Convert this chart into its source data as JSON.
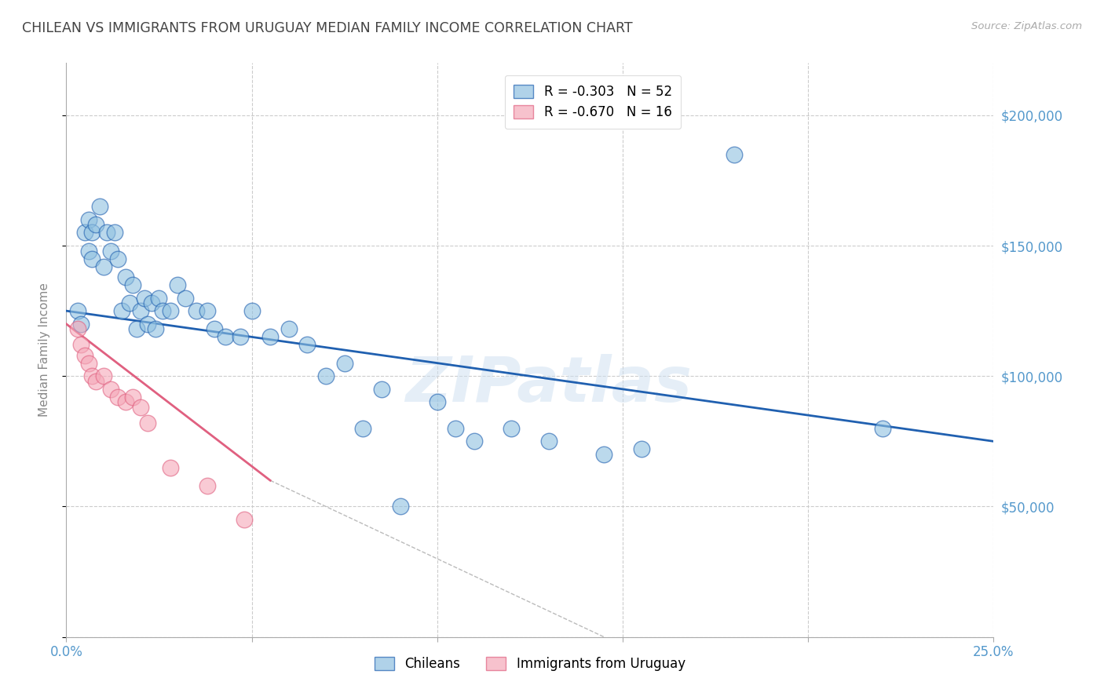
{
  "title": "CHILEAN VS IMMIGRANTS FROM URUGUAY MEDIAN FAMILY INCOME CORRELATION CHART",
  "source": "Source: ZipAtlas.com",
  "ylabel": "Median Family Income",
  "xlim": [
    0.0,
    0.25
  ],
  "ylim": [
    0,
    220000
  ],
  "yticks": [
    0,
    50000,
    100000,
    150000,
    200000
  ],
  "xticks": [
    0.0,
    0.05,
    0.1,
    0.15,
    0.2,
    0.25
  ],
  "xtick_labels": [
    "0.0%",
    "",
    "",
    "",
    "",
    "25.0%"
  ],
  "ytick_labels": [
    "",
    "$50,000",
    "$100,000",
    "$150,000",
    "$200,000"
  ],
  "legend_entries": [
    {
      "label": "R = -0.303   N = 52"
    },
    {
      "label": "R = -0.670   N = 16"
    }
  ],
  "legend_labels_bottom": [
    "Chileans",
    "Immigrants from Uruguay"
  ],
  "chileans_x": [
    0.003,
    0.004,
    0.005,
    0.006,
    0.006,
    0.007,
    0.007,
    0.008,
    0.009,
    0.01,
    0.011,
    0.012,
    0.013,
    0.014,
    0.015,
    0.016,
    0.017,
    0.018,
    0.019,
    0.02,
    0.021,
    0.022,
    0.023,
    0.024,
    0.025,
    0.026,
    0.028,
    0.03,
    0.032,
    0.035,
    0.038,
    0.04,
    0.043,
    0.047,
    0.05,
    0.055,
    0.06,
    0.065,
    0.07,
    0.075,
    0.08,
    0.085,
    0.09,
    0.1,
    0.105,
    0.11,
    0.12,
    0.13,
    0.145,
    0.155,
    0.18,
    0.22
  ],
  "chileans_y": [
    125000,
    120000,
    155000,
    160000,
    148000,
    155000,
    145000,
    158000,
    165000,
    142000,
    155000,
    148000,
    155000,
    145000,
    125000,
    138000,
    128000,
    135000,
    118000,
    125000,
    130000,
    120000,
    128000,
    118000,
    130000,
    125000,
    125000,
    135000,
    130000,
    125000,
    125000,
    118000,
    115000,
    115000,
    125000,
    115000,
    118000,
    112000,
    100000,
    105000,
    80000,
    95000,
    50000,
    90000,
    80000,
    75000,
    80000,
    75000,
    70000,
    72000,
    185000,
    80000
  ],
  "uruguay_x": [
    0.003,
    0.004,
    0.005,
    0.006,
    0.007,
    0.008,
    0.01,
    0.012,
    0.014,
    0.016,
    0.018,
    0.02,
    0.022,
    0.028,
    0.038,
    0.048
  ],
  "uruguay_y": [
    118000,
    112000,
    108000,
    105000,
    100000,
    98000,
    100000,
    95000,
    92000,
    90000,
    92000,
    88000,
    82000,
    65000,
    58000,
    45000
  ],
  "blue_line_x": [
    0.0,
    0.25
  ],
  "blue_line_y": [
    125000,
    75000
  ],
  "pink_line_x": [
    0.0,
    0.055
  ],
  "pink_line_y": [
    120000,
    60000
  ],
  "gray_line_x": [
    0.055,
    0.145
  ],
  "gray_line_y": [
    60000,
    0
  ],
  "watermark": "ZIPatlas",
  "bg_color": "#ffffff",
  "scatter_blue": "#8fc0e0",
  "scatter_pink": "#f5a8b8",
  "line_blue": "#2060b0",
  "line_pink": "#e06080",
  "grid_color": "#cccccc",
  "tick_color": "#5599cc",
  "title_color": "#444444",
  "right_label_color": "#5599cc"
}
